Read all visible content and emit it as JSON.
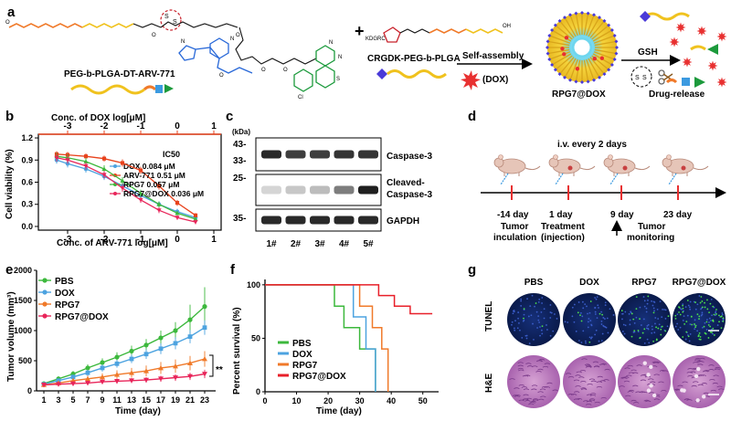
{
  "figure": {
    "panel_a": {
      "label": "a",
      "left_label": "PEG-b-PLGA-DT-ARV-771",
      "right_label": "CRGDK-PEG-b-PLGA",
      "right_prefix": "KDGRC",
      "plus": "+",
      "self_assembly": "Self-assembly",
      "dox": "(DOX)",
      "nano": "RPG7@DOX",
      "gsh": "GSH",
      "release": "Drug-release",
      "mol_labels": [
        "O",
        "S",
        "S",
        "O",
        "N",
        "N",
        "N",
        "O",
        "O",
        "O",
        "O",
        "Cl",
        "S",
        "N",
        "OH"
      ]
    },
    "panel_b": {
      "label": "b",
      "ic50_header": "IC50",
      "chart_data": {
        "type": "line",
        "xlabel": "Conc. of ARV-771 log[μM]",
        "top_xlabel": "Conc. of DOX log[μM]",
        "ylabel": "Cell viability (%)",
        "xlim": [
          -3.8,
          1.2
        ],
        "ylim": [
          -0.05,
          1.25
        ],
        "xticks": [
          -3,
          -2,
          -1,
          0,
          1
        ],
        "top_ticks": [
          -3,
          -2,
          -1,
          0,
          1
        ],
        "yticks": [
          0.0,
          0.3,
          0.6,
          0.9,
          1.2
        ],
        "ytick_labels": [
          "0.0",
          "0.3",
          "0.6",
          "0.9",
          "1.2"
        ],
        "series": [
          {
            "name": "DOX 0.084 μM",
            "color": "#4da3e0",
            "x": [
              -3.3,
              -3,
              -2.5,
              -2,
              -1.5,
              -1,
              -0.5,
              0,
              0.5
            ],
            "y": [
              0.9,
              0.85,
              0.78,
              0.68,
              0.55,
              0.42,
              0.3,
              0.2,
              0.12
            ],
            "err": [
              0.05,
              0.05,
              0.05,
              0.05,
              0.05,
              0.05,
              0.04,
              0.04,
              0.03
            ]
          },
          {
            "name": "ARV-771 0.51 μM",
            "color": "#e8421c",
            "x": [
              -3.3,
              -3,
              -2.5,
              -2,
              -1.5,
              -1,
              -0.5,
              0,
              0.5
            ],
            "y": [
              0.98,
              0.97,
              0.95,
              0.92,
              0.86,
              0.76,
              0.55,
              0.32,
              0.15
            ],
            "err": [
              0.04,
              0.04,
              0.04,
              0.04,
              0.05,
              0.05,
              0.05,
              0.04,
              0.03
            ]
          },
          {
            "name": "RPG7 0.057 μM",
            "color": "#3cb83c",
            "x": [
              -3.3,
              -3,
              -2.5,
              -2,
              -1.5,
              -1,
              -0.5,
              0,
              0.5
            ],
            "y": [
              0.95,
              0.93,
              0.88,
              0.78,
              0.62,
              0.45,
              0.3,
              0.18,
              0.1
            ],
            "err": [
              0.05,
              0.05,
              0.05,
              0.05,
              0.05,
              0.05,
              0.04,
              0.03,
              0.03
            ]
          },
          {
            "name": "RPG7@DOX 0.036 μM",
            "color": "#e8255a",
            "x": [
              -3.3,
              -3,
              -2.5,
              -2,
              -1.5,
              -1,
              -0.5,
              0,
              0.5
            ],
            "y": [
              0.93,
              0.9,
              0.82,
              0.7,
              0.52,
              0.36,
              0.22,
              0.12,
              0.06
            ],
            "err": [
              0.05,
              0.05,
              0.05,
              0.05,
              0.05,
              0.04,
              0.04,
              0.03,
              0.03
            ]
          }
        ]
      }
    },
    "panel_c": {
      "label": "c",
      "kda": "(kDa)",
      "markers": [
        "43-",
        "33-",
        "25-",
        "35-"
      ],
      "rows": [
        "Caspase-3",
        "Cleaved-Caspase-3",
        "GAPDH"
      ],
      "lanes": [
        "1#",
        "2#",
        "3#",
        "4#",
        "5#"
      ],
      "bands": {
        "caspase": [
          0.9,
          0.8,
          0.8,
          0.85,
          0.85
        ],
        "cleaved": [
          0.08,
          0.15,
          0.2,
          0.5,
          0.95
        ],
        "gapdh": [
          0.9,
          0.9,
          0.9,
          0.9,
          0.9
        ]
      }
    },
    "panel_d": {
      "label": "d",
      "iv_text": "i.v. every 2 days",
      "points": [
        {
          "day": "-14 day",
          "desc": "Tumor incubation"
        },
        {
          "day": "1 day",
          "desc": "Treatment (injection)"
        },
        {
          "day": "9 day",
          "desc": ""
        },
        {
          "day": "23 day",
          "desc": ""
        }
      ],
      "desc_lines": [
        "Tumor",
        "inculation",
        "Treatment",
        "(injection)"
      ],
      "monitor_lines": [
        "Tumor",
        "monitoring"
      ],
      "arrow_color": "#e83030"
    },
    "panel_e": {
      "label": "e",
      "sig": "**",
      "chart_data": {
        "type": "line",
        "xlabel": "Time (day)",
        "ylabel": "Tumor volume (mm³)",
        "xlim": [
          0,
          24.5
        ],
        "ylim": [
          0,
          2000
        ],
        "xticks": [
          1,
          3,
          5,
          7,
          9,
          11,
          13,
          15,
          17,
          19,
          21,
          23
        ],
        "yticks": [
          0,
          500,
          1000,
          1500,
          2000
        ],
        "series": [
          {
            "name": "PBS",
            "color": "#3cb83c",
            "marker": "circle",
            "x": [
              1,
              3,
              5,
              7,
              9,
              11,
              13,
              15,
              17,
              19,
              21,
              23
            ],
            "y": [
              120,
              200,
              280,
              380,
              470,
              560,
              660,
              760,
              880,
              1000,
              1180,
              1400
            ],
            "err": [
              30,
              40,
              50,
              60,
              70,
              80,
              90,
              100,
              120,
              140,
              250,
              320
            ]
          },
          {
            "name": "DOX",
            "color": "#4da3e0",
            "marker": "square",
            "x": [
              1,
              3,
              5,
              7,
              9,
              11,
              13,
              15,
              17,
              19,
              21,
              23
            ],
            "y": [
              110,
              170,
              230,
              300,
              380,
              450,
              530,
              610,
              700,
              790,
              900,
              1050
            ],
            "err": [
              30,
              35,
              40,
              50,
              60,
              65,
              70,
              80,
              90,
              100,
              110,
              120
            ]
          },
          {
            "name": "RPG7",
            "color": "#f07a2a",
            "marker": "triangle",
            "x": [
              1,
              3,
              5,
              7,
              9,
              11,
              13,
              15,
              17,
              19,
              21,
              23
            ],
            "y": [
              100,
              130,
              170,
              200,
              230,
              270,
              300,
              330,
              380,
              410,
              460,
              530
            ],
            "err": [
              30,
              35,
              40,
              50,
              60,
              70,
              80,
              90,
              100,
              110,
              120,
              130
            ]
          },
          {
            "name": "RPG7@DOX",
            "color": "#e8255a",
            "marker": "triangle-down",
            "x": [
              1,
              3,
              5,
              7,
              9,
              11,
              13,
              15,
              17,
              19,
              21,
              23
            ],
            "y": [
              100,
              110,
              120,
              130,
              150,
              160,
              170,
              180,
              200,
              220,
              240,
              280
            ],
            "err": [
              20,
              25,
              30,
              30,
              35,
              40,
              40,
              45,
              50,
              55,
              60,
              70
            ]
          }
        ]
      }
    },
    "panel_f": {
      "label": "f",
      "chart_data": {
        "type": "line",
        "xlabel": "Time (day)",
        "ylabel": "Percent survival (%)",
        "xlim": [
          0,
          55
        ],
        "ylim": [
          0,
          105
        ],
        "xticks": [
          0,
          10,
          20,
          30,
          40,
          50
        ],
        "yticks": [
          0,
          50,
          100
        ],
        "series": [
          {
            "name": "PBS",
            "color": "#3cb83c",
            "steps": [
              [
                0,
                100
              ],
              [
                22,
                100
              ],
              [
                22,
                80
              ],
              [
                25,
                80
              ],
              [
                25,
                60
              ],
              [
                30,
                60
              ],
              [
                30,
                40
              ],
              [
                35,
                40
              ],
              [
                35,
                0
              ]
            ]
          },
          {
            "name": "DOX",
            "color": "#4da3e0",
            "steps": [
              [
                0,
                100
              ],
              [
                28,
                100
              ],
              [
                28,
                70
              ],
              [
                32,
                70
              ],
              [
                32,
                40
              ],
              [
                35,
                40
              ],
              [
                35,
                0
              ]
            ]
          },
          {
            "name": "RPG7",
            "color": "#f07a2a",
            "steps": [
              [
                0,
                100
              ],
              [
                30,
                100
              ],
              [
                30,
                80
              ],
              [
                34,
                80
              ],
              [
                34,
                60
              ],
              [
                37,
                60
              ],
              [
                37,
                40
              ],
              [
                39,
                40
              ],
              [
                39,
                0
              ]
            ]
          },
          {
            "name": "RPG7@DOX",
            "color": "#e8202a",
            "steps": [
              [
                0,
                100
              ],
              [
                36,
                100
              ],
              [
                36,
                90
              ],
              [
                41,
                90
              ],
              [
                41,
                80
              ],
              [
                46,
                80
              ],
              [
                46,
                73
              ],
              [
                53,
                73
              ]
            ]
          }
        ]
      }
    },
    "panel_g": {
      "label": "g",
      "cols": [
        "PBS",
        "DOX",
        "RPG7",
        "RPG7@DOX"
      ],
      "rows": [
        "TUNEL",
        "H&E"
      ],
      "tunel_density": [
        0.03,
        0.06,
        0.22,
        0.55
      ]
    }
  }
}
